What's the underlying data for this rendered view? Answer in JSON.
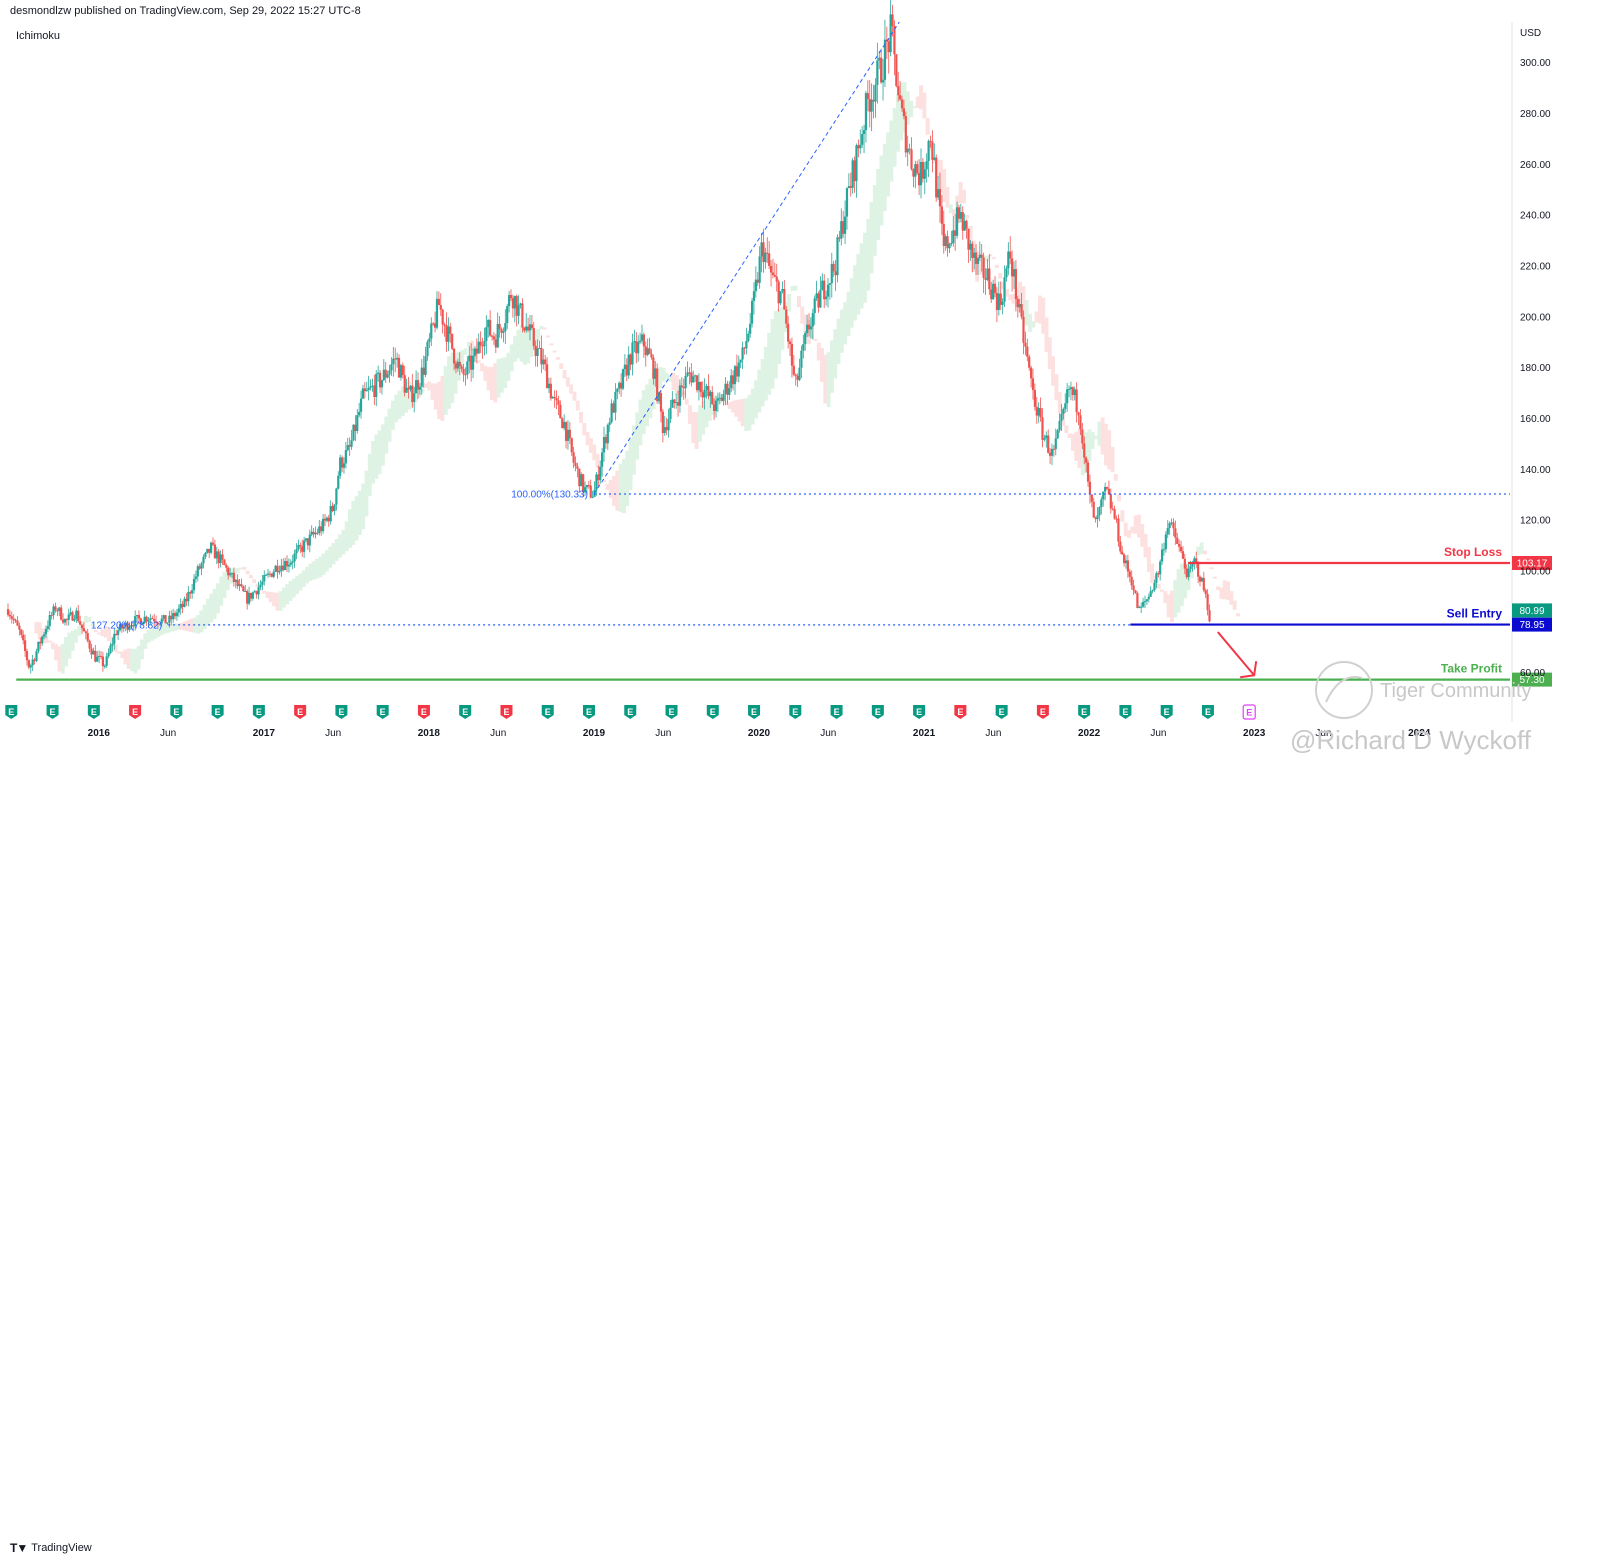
{
  "header": {
    "publisher_line": "desmondlzw published on TradingView.com, Sep 29, 2022 15:27 UTC-8",
    "indicator_label": "Ichimoku"
  },
  "footer": {
    "brand": "TradingView"
  },
  "watermark": {
    "community": "Tiger Community",
    "author": "@Richard D Wyckoff"
  },
  "colors": {
    "up_candle": "#26a69a",
    "down_candle": "#ef5350",
    "stop_loss": "#f23645",
    "sell_entry": "#0a0ad0",
    "take_profit": "#4caf50",
    "fib": "#2962ff",
    "cloud_bull": "#dff3e4",
    "cloud_bear": "#fde0e0"
  },
  "chart_data": {
    "type": "line",
    "currency": "USD",
    "ylim": [
      54,
      316
    ],
    "y_ticks": [
      "60.00",
      "100.00",
      "120.00",
      "140.00",
      "160.00",
      "180.00",
      "200.00",
      "220.00",
      "240.00",
      "260.00",
      "280.00",
      "300.00"
    ],
    "x_ticks": [
      {
        "label": "2016",
        "t": 2016.0,
        "year": true
      },
      {
        "label": "Jun",
        "t": 2016.42,
        "year": false
      },
      {
        "label": "2017",
        "t": 2017.0,
        "year": true
      },
      {
        "label": "Jun",
        "t": 2017.42,
        "year": false
      },
      {
        "label": "2018",
        "t": 2018.0,
        "year": true
      },
      {
        "label": "Jun",
        "t": 2018.42,
        "year": false
      },
      {
        "label": "2019",
        "t": 2019.0,
        "year": true
      },
      {
        "label": "Jun",
        "t": 2019.42,
        "year": false
      },
      {
        "label": "2020",
        "t": 2020.0,
        "year": true
      },
      {
        "label": "Jun",
        "t": 2020.42,
        "year": false
      },
      {
        "label": "2021",
        "t": 2021.0,
        "year": true
      },
      {
        "label": "Jun",
        "t": 2021.42,
        "year": false
      },
      {
        "label": "2022",
        "t": 2022.0,
        "year": true
      },
      {
        "label": "Jun",
        "t": 2022.42,
        "year": false
      },
      {
        "label": "2023",
        "t": 2023.0,
        "year": true
      },
      {
        "label": "Jun",
        "t": 2023.42,
        "year": false
      },
      {
        "label": "2024",
        "t": 2024.0,
        "year": true
      }
    ],
    "xlim": [
      2015.45,
      2024.55
    ],
    "price_path": [
      [
        2015.45,
        85
      ],
      [
        2015.52,
        76
      ],
      [
        2015.58,
        62
      ],
      [
        2015.62,
        68
      ],
      [
        2015.68,
        78
      ],
      [
        2015.74,
        86
      ],
      [
        2015.8,
        80
      ],
      [
        2015.86,
        84
      ],
      [
        2015.92,
        74
      ],
      [
        2015.98,
        66
      ],
      [
        2016.04,
        63
      ],
      [
        2016.1,
        76
      ],
      [
        2016.2,
        80
      ],
      [
        2016.3,
        82
      ],
      [
        2016.42,
        80
      ],
      [
        2016.52,
        87
      ],
      [
        2016.6,
        100
      ],
      [
        2016.68,
        109
      ],
      [
        2016.74,
        104
      ],
      [
        2016.82,
        96
      ],
      [
        2016.9,
        89
      ],
      [
        2017.0,
        96
      ],
      [
        2017.08,
        102
      ],
      [
        2017.16,
        104
      ],
      [
        2017.24,
        110
      ],
      [
        2017.3,
        114
      ],
      [
        2017.36,
        118
      ],
      [
        2017.42,
        125
      ],
      [
        2017.46,
        142
      ],
      [
        2017.52,
        148
      ],
      [
        2017.6,
        168
      ],
      [
        2017.66,
        172
      ],
      [
        2017.72,
        176
      ],
      [
        2017.8,
        184
      ],
      [
        2017.88,
        168
      ],
      [
        2017.96,
        178
      ],
      [
        2018.06,
        205
      ],
      [
        2018.12,
        192
      ],
      [
        2018.2,
        176
      ],
      [
        2018.28,
        184
      ],
      [
        2018.34,
        196
      ],
      [
        2018.4,
        192
      ],
      [
        2018.46,
        200
      ],
      [
        2018.5,
        210
      ],
      [
        2018.56,
        200
      ],
      [
        2018.62,
        192
      ],
      [
        2018.7,
        180
      ],
      [
        2018.76,
        166
      ],
      [
        2018.82,
        158
      ],
      [
        2018.88,
        142
      ],
      [
        2018.94,
        132
      ],
      [
        2019.0,
        130.33
      ],
      [
        2019.06,
        150
      ],
      [
        2019.1,
        162
      ],
      [
        2019.16,
        172
      ],
      [
        2019.22,
        185
      ],
      [
        2019.3,
        190
      ],
      [
        2019.36,
        180
      ],
      [
        2019.42,
        156
      ],
      [
        2019.5,
        168
      ],
      [
        2019.58,
        178
      ],
      [
        2019.66,
        172
      ],
      [
        2019.74,
        164
      ],
      [
        2019.82,
        174
      ],
      [
        2019.9,
        184
      ],
      [
        2019.96,
        202
      ],
      [
        2020.02,
        228
      ],
      [
        2020.08,
        215
      ],
      [
        2020.14,
        208
      ],
      [
        2020.18,
        190
      ],
      [
        2020.22,
        172
      ],
      [
        2020.3,
        196
      ],
      [
        2020.38,
        210
      ],
      [
        2020.46,
        220
      ],
      [
        2020.52,
        242
      ],
      [
        2020.58,
        260
      ],
      [
        2020.66,
        285
      ],
      [
        2020.74,
        298
      ],
      [
        2020.8,
        312
      ],
      [
        2020.86,
        280
      ],
      [
        2020.92,
        262
      ],
      [
        2020.98,
        255
      ],
      [
        2021.04,
        272
      ],
      [
        2021.08,
        248
      ],
      [
        2021.12,
        226
      ],
      [
        2021.16,
        232
      ],
      [
        2021.22,
        240
      ],
      [
        2021.3,
        222
      ],
      [
        2021.38,
        216
      ],
      [
        2021.46,
        205
      ],
      [
        2021.52,
        225
      ],
      [
        2021.58,
        200
      ],
      [
        2021.66,
        170
      ],
      [
        2021.72,
        154
      ],
      [
        2021.78,
        145
      ],
      [
        2021.84,
        160
      ],
      [
        2021.88,
        172
      ],
      [
        2021.94,
        164
      ],
      [
        2022.0,
        130
      ],
      [
        2022.04,
        118
      ],
      [
        2022.1,
        132
      ],
      [
        2022.16,
        120
      ],
      [
        2022.2,
        106
      ],
      [
        2022.26,
        96
      ],
      [
        2022.3,
        84
      ],
      [
        2022.36,
        90
      ],
      [
        2022.42,
        100
      ],
      [
        2022.48,
        120
      ],
      [
        2022.54,
        110
      ],
      [
        2022.6,
        98
      ],
      [
        2022.64,
        104
      ],
      [
        2022.7,
        92
      ],
      [
        2022.74,
        78.95
      ]
    ],
    "fib_line": {
      "from": [
        2019.0,
        130.33
      ],
      "to": [
        2020.85,
        316
      ]
    },
    "levels": [
      {
        "name": "stop_loss",
        "title": "Stop Loss",
        "value": 103.17,
        "tag": "103.17",
        "color": "#f23645",
        "from_t": 2022.6
      },
      {
        "name": "sell_entry",
        "title": "Sell Entry",
        "value": 78.95,
        "tag": "78.95",
        "color": "#0a0ad0",
        "from_t": 2022.25
      },
      {
        "name": "take_profit",
        "title": "Take Profit",
        "value": 57.3,
        "tag": "57.30",
        "color": "#4caf50",
        "from_t": 2015.5
      }
    ],
    "last_price": {
      "value": 80.99,
      "tag": "80.99",
      "color": "#089981"
    },
    "fib_levels": [
      {
        "label": "100.00%(130.33)",
        "value": 130.33,
        "from_t": 2019.0
      },
      {
        "label": "127.20%(78.82)",
        "value": 78.82,
        "from_t": 2016.42
      }
    ],
    "earnings_markers": [
      {
        "t": 2015.47,
        "color": "#089981"
      },
      {
        "t": 2015.72,
        "color": "#089981"
      },
      {
        "t": 2015.97,
        "color": "#089981"
      },
      {
        "t": 2016.22,
        "color": "#f23645"
      },
      {
        "t": 2016.47,
        "color": "#089981"
      },
      {
        "t": 2016.72,
        "color": "#089981"
      },
      {
        "t": 2016.97,
        "color": "#089981"
      },
      {
        "t": 2017.22,
        "color": "#f23645"
      },
      {
        "t": 2017.47,
        "color": "#089981"
      },
      {
        "t": 2017.72,
        "color": "#089981"
      },
      {
        "t": 2017.97,
        "color": "#f23645"
      },
      {
        "t": 2018.22,
        "color": "#089981"
      },
      {
        "t": 2018.47,
        "color": "#f23645"
      },
      {
        "t": 2018.72,
        "color": "#089981"
      },
      {
        "t": 2018.97,
        "color": "#089981"
      },
      {
        "t": 2019.22,
        "color": "#089981"
      },
      {
        "t": 2019.47,
        "color": "#089981"
      },
      {
        "t": 2019.72,
        "color": "#089981"
      },
      {
        "t": 2019.97,
        "color": "#089981"
      },
      {
        "t": 2020.22,
        "color": "#089981"
      },
      {
        "t": 2020.47,
        "color": "#089981"
      },
      {
        "t": 2020.72,
        "color": "#089981"
      },
      {
        "t": 2020.97,
        "color": "#089981"
      },
      {
        "t": 2021.22,
        "color": "#f23645"
      },
      {
        "t": 2021.47,
        "color": "#089981"
      },
      {
        "t": 2021.72,
        "color": "#f23645"
      },
      {
        "t": 2021.97,
        "color": "#089981"
      },
      {
        "t": 2022.22,
        "color": "#089981"
      },
      {
        "t": 2022.47,
        "color": "#089981"
      },
      {
        "t": 2022.72,
        "color": "#089981"
      },
      {
        "t": 2022.97,
        "color": "#e040fb"
      }
    ],
    "earnings_label": "E"
  }
}
